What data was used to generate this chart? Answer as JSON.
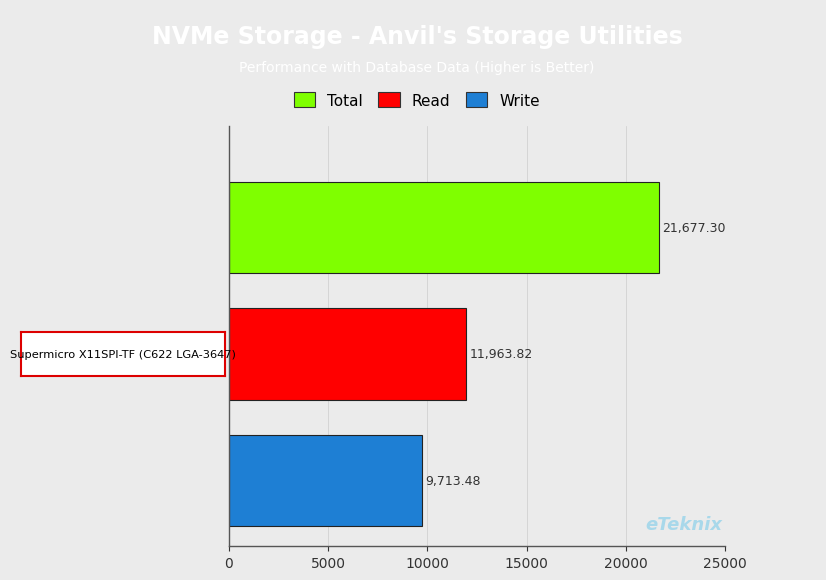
{
  "title": "NVMe Storage - Anvil's Storage Utilities",
  "subtitle": "Performance with Database Data (Higher is Better)",
  "title_bg_color": "#1ab0e8",
  "title_text_color": "#ffffff",
  "subtitle_text_color": "#ffffff",
  "ylabel_label": "Supermicro X11SPI-TF (C622 LGA-3647)",
  "categories": [
    "Total",
    "Read",
    "Write"
  ],
  "values": [
    21677.3,
    11963.82,
    9713.48
  ],
  "bar_colors": [
    "#7fff00",
    "#ff0000",
    "#1e7fd4"
  ],
  "bar_edge_color": "#222222",
  "xlim": [
    0,
    25000
  ],
  "xticks": [
    0,
    5000,
    10000,
    15000,
    20000,
    25000
  ],
  "value_labels": [
    "21,677.30",
    "11,963.82",
    "9,713.48"
  ],
  "legend_colors": [
    "#7fff00",
    "#ff0000",
    "#1e7fd4"
  ],
  "legend_labels": [
    "Total",
    "Read",
    "Write"
  ],
  "bg_color": "#ebebeb",
  "plot_bg_color": "#ebebeb",
  "watermark": "eTeknix",
  "watermark_color": "#a8d8ea",
  "title_fontsize": 17,
  "subtitle_fontsize": 10,
  "tick_fontsize": 10,
  "value_fontsize": 9,
  "legend_fontsize": 11,
  "ylabel_box_color": "#ffffff",
  "ylabel_box_edge": "#dd0000"
}
